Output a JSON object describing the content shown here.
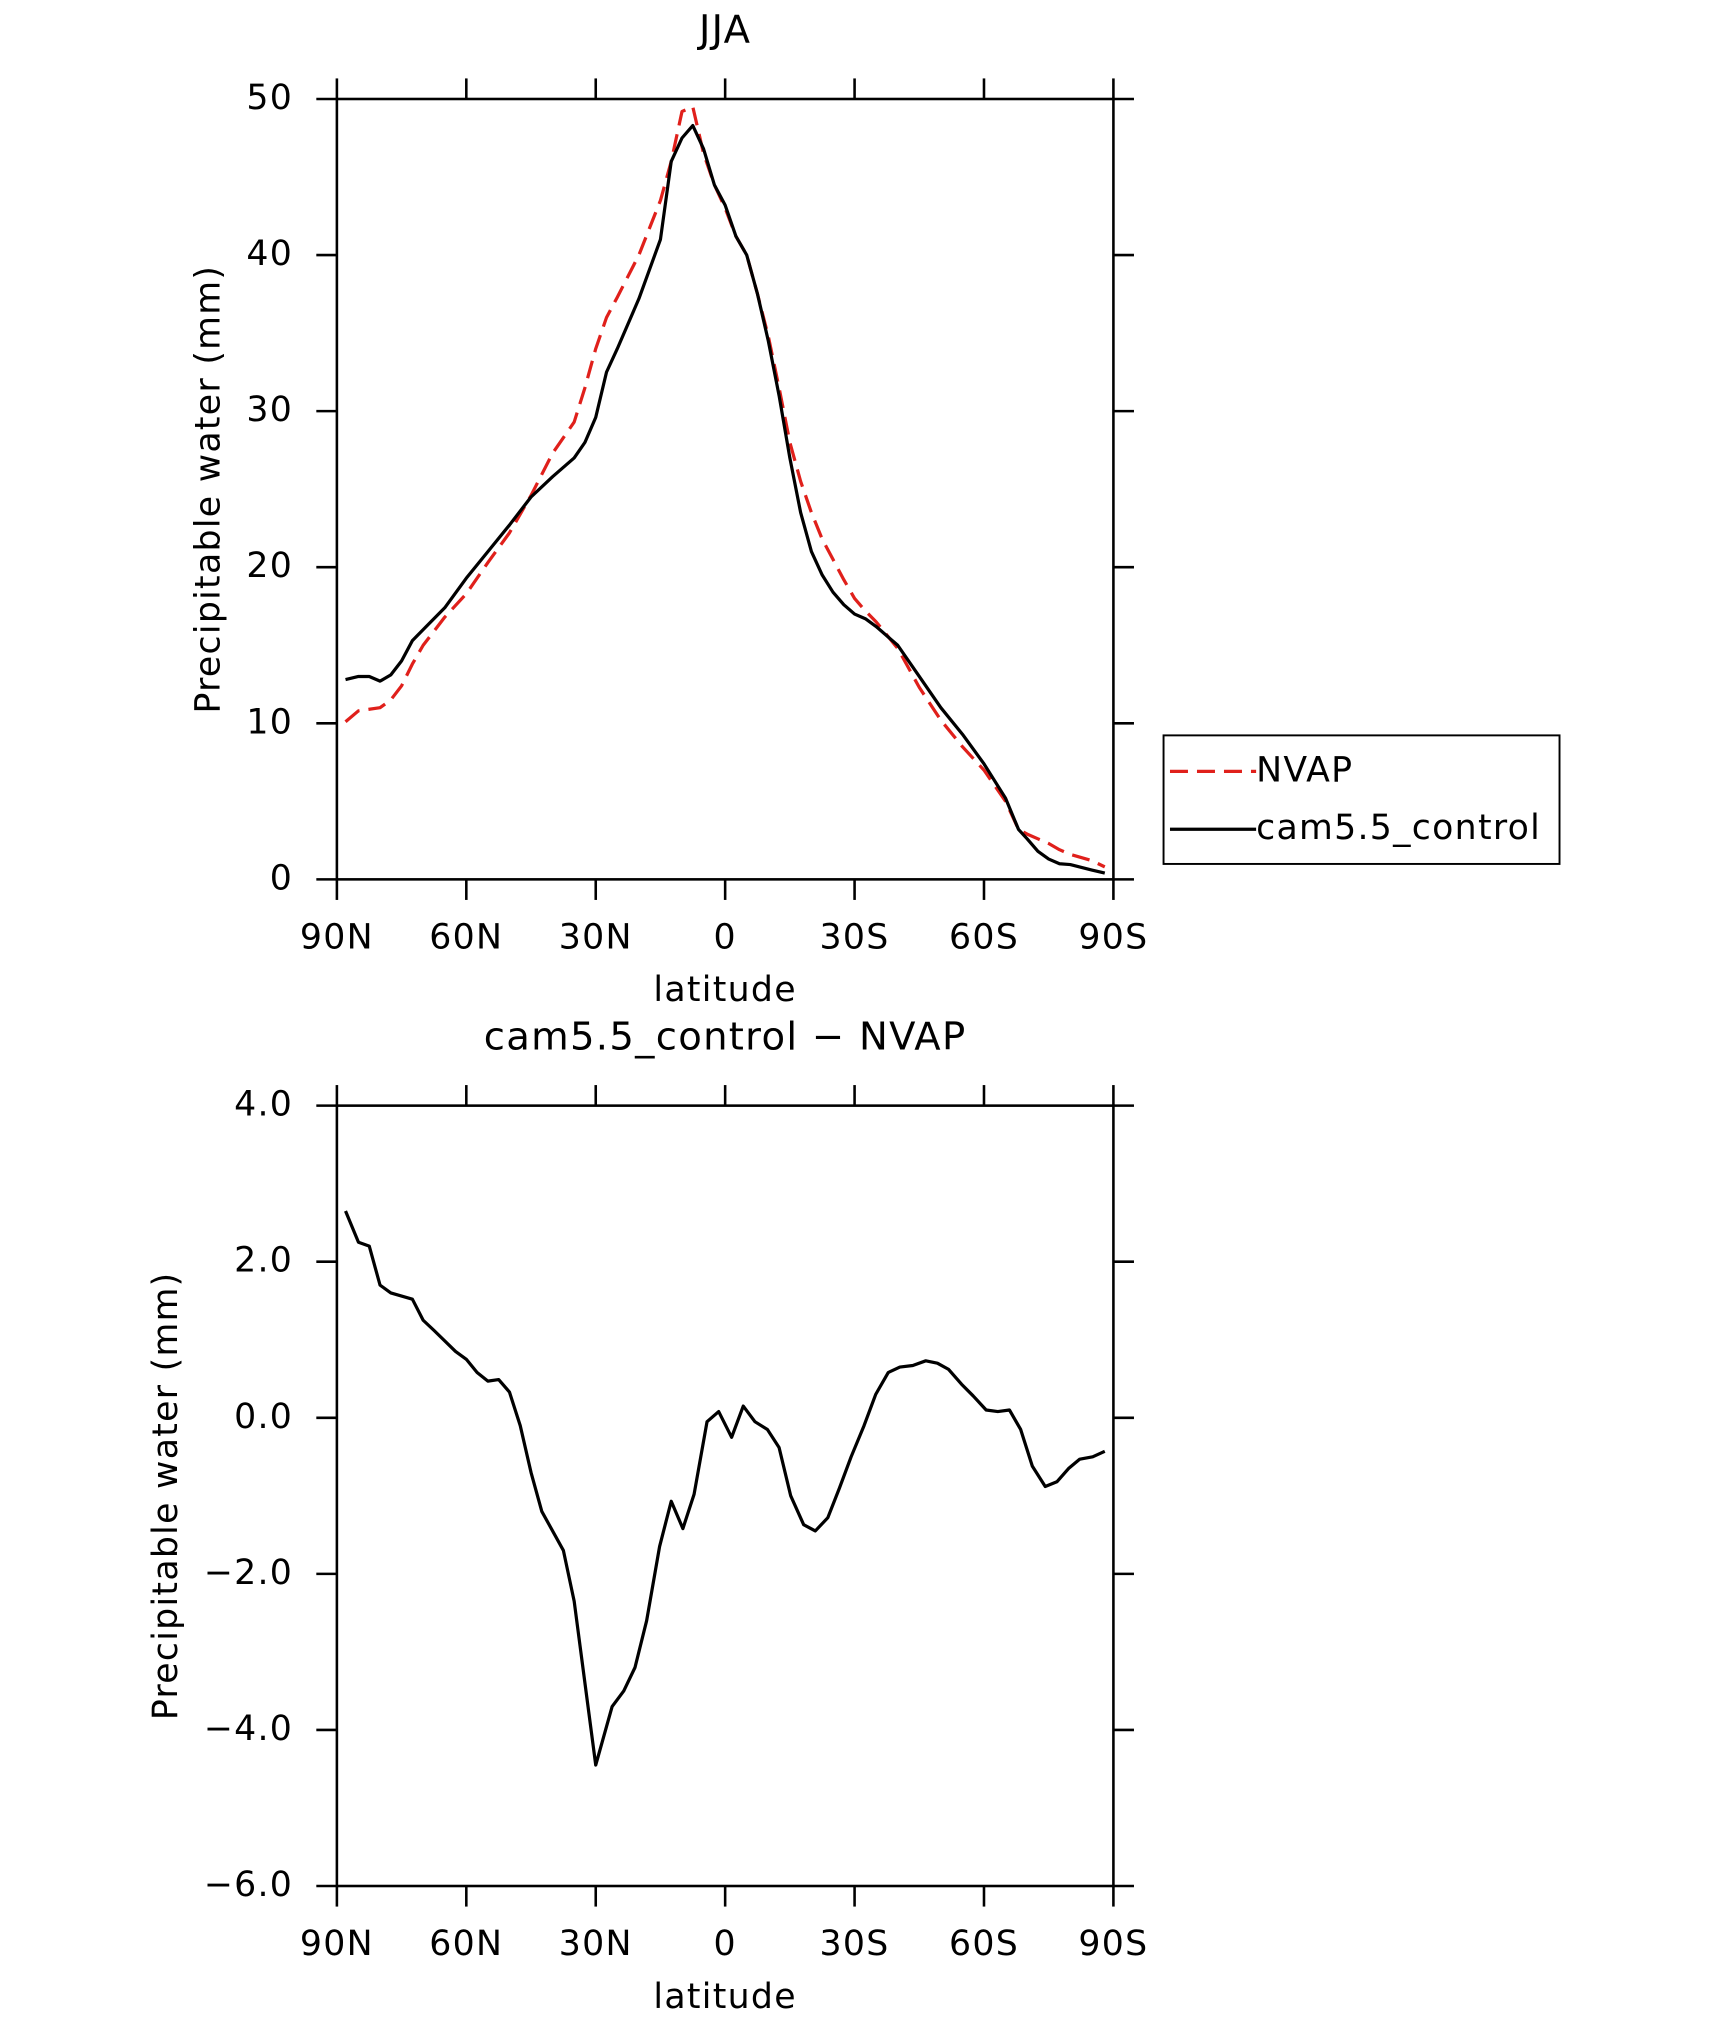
{
  "chart_data": [
    {
      "type": "line",
      "title": "JJA",
      "xlabel": "latitude",
      "ylabel": "Precipitable water (mm)",
      "x": [
        88,
        85,
        82.5,
        80,
        77.5,
        75,
        72.5,
        70,
        65,
        60,
        55,
        50,
        45,
        40,
        35,
        32.5,
        30,
        27.5,
        25,
        20,
        15,
        12.5,
        10,
        7.5,
        5,
        2.5,
        0,
        -2.5,
        -5,
        -7.5,
        -10,
        -12.5,
        -15,
        -17.5,
        -20,
        -22.5,
        -25,
        -27.5,
        -30,
        -32.5,
        -35,
        -40,
        -45,
        -50,
        -55,
        -60,
        -65,
        -68,
        -70,
        -72.5,
        -75,
        -77.5,
        -80,
        -85,
        -88
      ],
      "series": [
        {
          "name": "NVAP",
          "color": "#e0201b",
          "dashed": true,
          "values": [
            10.1,
            10.8,
            10.9,
            11,
            11.5,
            12.4,
            13.8,
            15,
            16.8,
            18.3,
            20.3,
            22.2,
            24.6,
            27.3,
            29.3,
            31.5,
            34,
            36,
            37.3,
            40,
            43.5,
            46,
            49.2,
            49.5,
            46.5,
            44.5,
            43,
            41.2,
            40,
            37.5,
            34.8,
            31.5,
            28,
            25.5,
            23.5,
            21.8,
            20.5,
            19.2,
            18,
            17.2,
            16.5,
            14.8,
            12.3,
            10.2,
            8.5,
            7,
            5,
            3.2,
            2.9,
            2.6,
            2.3,
            1.9,
            1.6,
            1.2,
            0.8
          ]
        },
        {
          "name": "cam5.5_control",
          "color": "#000000",
          "dashed": false,
          "values": [
            12.8,
            13,
            13,
            12.7,
            13.1,
            14,
            15.3,
            16,
            17.4,
            19.3,
            21,
            22.7,
            24.5,
            25.8,
            27,
            28,
            29.6,
            32.5,
            34,
            37.2,
            41,
            46,
            47.5,
            48.3,
            46.8,
            44.5,
            43.2,
            41.2,
            40,
            37.5,
            34.5,
            31,
            27,
            23.5,
            21,
            19.5,
            18.4,
            17.6,
            17,
            16.7,
            16.2,
            15,
            13,
            11,
            9.3,
            7.4,
            5.2,
            3.2,
            2.6,
            1.8,
            1.3,
            1,
            0.95,
            0.6,
            0.4
          ]
        }
      ],
      "xlim": [
        90,
        -90
      ],
      "xticks": [
        {
          "value": 90,
          "label": "90N"
        },
        {
          "value": 60,
          "label": "60N"
        },
        {
          "value": 30,
          "label": "30N"
        },
        0,
        {
          "value": -30,
          "label": "30S"
        },
        {
          "value": -60,
          "label": "60S"
        },
        {
          "value": -90,
          "label": "90S"
        }
      ],
      "ylim": [
        0,
        50
      ],
      "yticks": [
        0,
        10,
        20,
        30,
        40,
        50
      ],
      "legend": "right"
    },
    {
      "type": "line",
      "title": "cam5.5_control − NVAP",
      "xlabel": "latitude",
      "ylabel": "Precipitable water (mm)",
      "x": [
        88,
        85,
        82.5,
        80,
        77.5,
        72.5,
        70,
        67.5,
        62.5,
        60,
        57.5,
        55,
        52.5,
        50,
        47.5,
        45,
        42.5,
        37.5,
        35,
        32.5,
        30,
        26.2,
        23.5,
        20.9,
        18.2,
        15.2,
        12.5,
        9.8,
        7.2,
        4.2,
        1.5,
        -1.5,
        -4.2,
        -6.9,
        -9.8,
        -12.5,
        -15.2,
        -18.2,
        -20.9,
        -23.8,
        -26.5,
        -29.2,
        -32.2,
        -34.9,
        -37.8,
        -40.5,
        -43.5,
        -46.5,
        -49.2,
        -51.8,
        -54.8,
        -57.5,
        -60.5,
        -63.2,
        -65.9,
        -68.5,
        -71.2,
        -74.2,
        -76.9,
        -79.6,
        -82.2,
        -85.2,
        -88
      ],
      "values": [
        2.65,
        2.25,
        2.2,
        1.7,
        1.6,
        1.52,
        1.25,
        1.12,
        0.85,
        0.75,
        0.58,
        0.47,
        0.49,
        0.33,
        -0.1,
        -0.7,
        -1.2,
        -1.7,
        -2.35,
        -3.4,
        -4.45,
        -3.7,
        -3.5,
        -3.2,
        -2.6,
        -1.65,
        -1.07,
        -1.42,
        -0.98,
        -0.05,
        0.08,
        -0.25,
        0.15,
        -0.05,
        -0.15,
        -0.38,
        -1,
        -1.37,
        -1.45,
        -1.28,
        -0.9,
        -0.5,
        -0.1,
        0.3,
        0.58,
        0.65,
        0.67,
        0.73,
        0.7,
        0.62,
        0.43,
        0.28,
        0.1,
        0.08,
        0.1,
        -0.15,
        -0.62,
        -0.88,
        -0.82,
        -0.65,
        -0.53,
        -0.5,
        -0.43
      ],
      "color": "#000000",
      "xlim": [
        90,
        -90
      ],
      "xticks": [
        {
          "value": 90,
          "label": "90N"
        },
        {
          "value": 60,
          "label": "60N"
        },
        {
          "value": 30,
          "label": "30N"
        },
        0,
        {
          "value": -30,
          "label": "30S"
        },
        {
          "value": -60,
          "label": "60S"
        },
        {
          "value": -90,
          "label": "90S"
        }
      ],
      "ylim": [
        -6,
        4
      ],
      "yticks": [
        {
          "value": -6,
          "label": "−6.0"
        },
        {
          "value": -4,
          "label": "−4.0"
        },
        {
          "value": -2,
          "label": "−2.0"
        },
        {
          "value": 0,
          "label": "0.0"
        },
        {
          "value": 2,
          "label": "2.0"
        },
        {
          "value": 4,
          "label": "4.0"
        }
      ]
    }
  ]
}
